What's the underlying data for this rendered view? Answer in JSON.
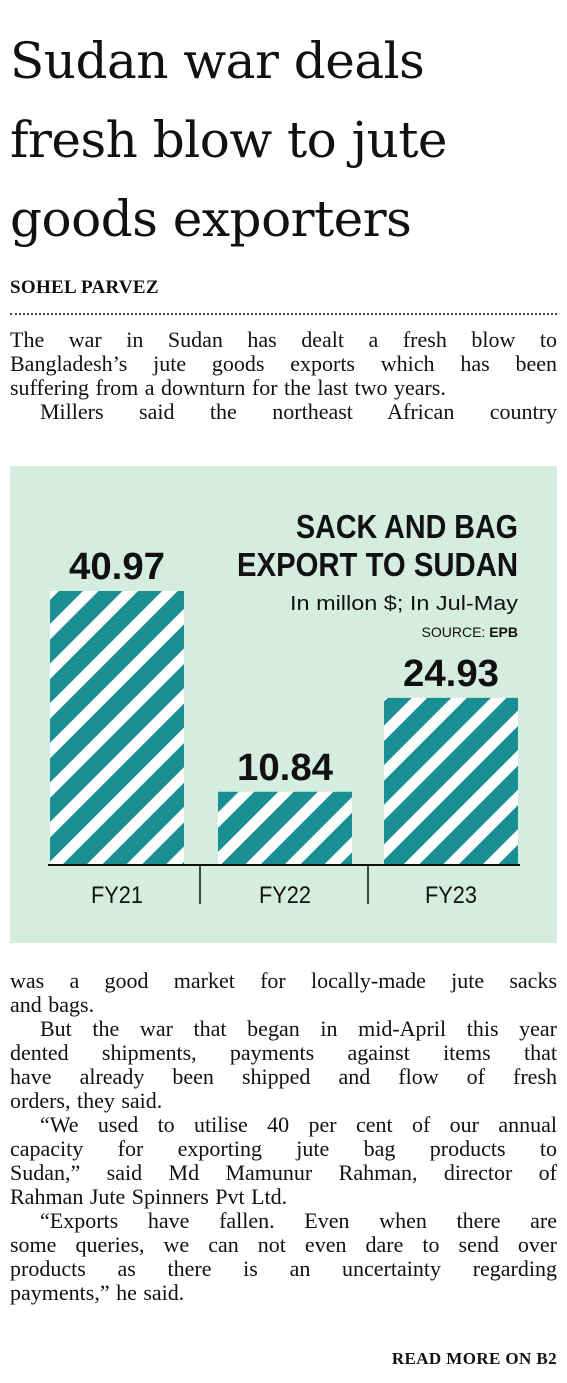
{
  "article": {
    "headline_lines": [
      "Sudan war deals",
      "fresh blow to jute",
      "goods exporters"
    ],
    "byline": "SOHEL PARVEZ",
    "intro_lines": [
      "The war in Sudan has dealt a fresh blow to",
      "Bangladesh’s jute goods exports which has been",
      "suffering from a downturn for the last two years."
    ],
    "intro2": "Millers said the northeast African country",
    "body_lines": [
      "was a good market for locally-made jute sacks",
      "and bags.",
      "But the war that began in mid-April this year",
      "dented shipments, payments against items that",
      "have already been shipped and flow of fresh",
      "orders, they said.",
      "“We used to utilise 40 per cent of our annual",
      "capacity for exporting jute bag products to",
      "Sudan,” said Md Mamunur Rahman, director of",
      "Rahman Jute Spinners Pvt Ltd.",
      "“Exports have fallen. Even when there are",
      "some queries, we can not even dare to send over",
      "products as there is an uncertainty regarding",
      "payments,” he said."
    ],
    "read_more": "READ MORE ON B2"
  },
  "chart_data": {
    "type": "bar",
    "title_lines": [
      "SACK AND BAG",
      "EXPORT TO SUDAN"
    ],
    "subtitle": "In millon $; In Jul-May",
    "source_label": "SOURCE:",
    "source_value": "EPB",
    "categories": [
      "FY21",
      "FY22",
      "FY23"
    ],
    "values": [
      40.97,
      10.84,
      24.93
    ],
    "value_labels": [
      "40.97",
      "10.84",
      "24.93"
    ],
    "ylim": [
      0,
      40.97
    ],
    "grid": false,
    "colors": {
      "bar": "#1a8f93",
      "background": "#d5ece0",
      "bar_stripe": "#ffffff"
    }
  }
}
